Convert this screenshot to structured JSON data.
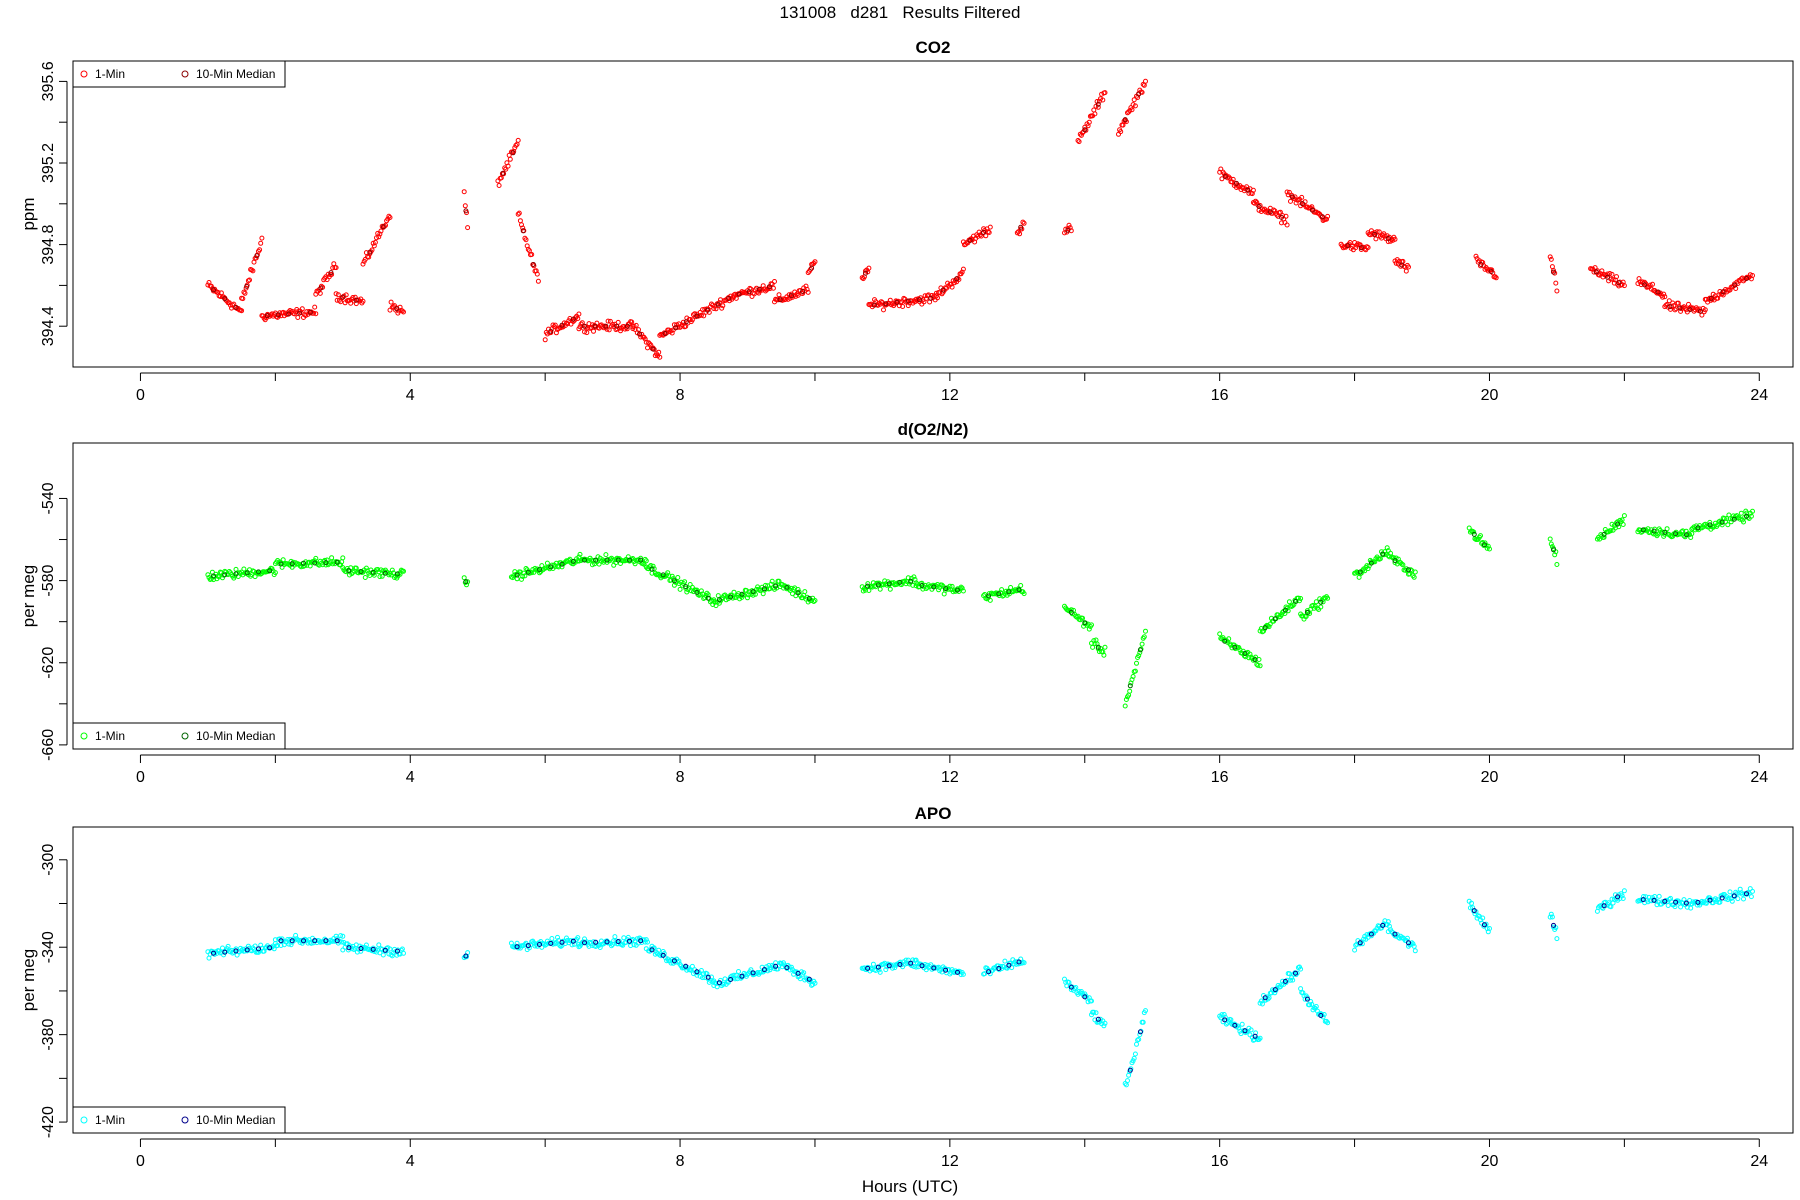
{
  "figure": {
    "title": "131008   d281   Results Filtered",
    "xlabel": "Hours (UTC)"
  },
  "chart_data": [
    {
      "type": "scatter",
      "title": "CO2",
      "xlabel": "",
      "ylabel": "ppm",
      "xlim": [
        -1,
        24.5
      ],
      "ylim": [
        394.2,
        395.7
      ],
      "xticks": [
        0,
        4,
        8,
        12,
        16,
        20,
        24
      ],
      "yticks": [
        394.4,
        394.8,
        395.2,
        395.6
      ],
      "ytick_labels": [
        "394.4",
        "394.8",
        "395.2",
        "395.6"
      ],
      "colors": {
        "minute": "#ff0000",
        "median": "#8b0000"
      },
      "legend": {
        "position": "top-left",
        "entries": [
          "1-Min",
          "10-Min Median"
        ]
      },
      "segments": [
        [
          1.0,
          1.5,
          394.6,
          394.47
        ],
        [
          1.5,
          1.8,
          394.52,
          394.82
        ],
        [
          1.8,
          2.6,
          394.45,
          394.47
        ],
        [
          2.6,
          2.9,
          394.55,
          394.7
        ],
        [
          2.9,
          3.3,
          394.55,
          394.52
        ],
        [
          3.3,
          3.7,
          394.7,
          394.95
        ],
        [
          3.7,
          3.9,
          394.5,
          394.47
        ],
        [
          4.8,
          4.85,
          395.05,
          394.88
        ],
        [
          5.3,
          5.6,
          395.1,
          395.3
        ],
        [
          5.6,
          5.9,
          394.95,
          394.62
        ],
        [
          6.0,
          6.5,
          394.36,
          394.45
        ],
        [
          6.5,
          7.3,
          394.4,
          394.4
        ],
        [
          7.3,
          7.7,
          394.4,
          394.25
        ],
        [
          7.7,
          8.8,
          394.35,
          394.55
        ],
        [
          8.8,
          9.4,
          394.55,
          394.6
        ],
        [
          9.4,
          9.9,
          394.52,
          394.58
        ],
        [
          9.9,
          10.0,
          394.65,
          394.72
        ],
        [
          10.7,
          10.8,
          394.62,
          394.7
        ],
        [
          10.8,
          11.8,
          394.5,
          394.54
        ],
        [
          11.8,
          12.2,
          394.55,
          394.66
        ],
        [
          12.2,
          12.6,
          394.8,
          394.88
        ],
        [
          13.0,
          13.1,
          394.85,
          394.92
        ],
        [
          13.7,
          13.8,
          394.86,
          394.88
        ],
        [
          13.9,
          14.3,
          395.3,
          395.55
        ],
        [
          14.5,
          14.9,
          395.35,
          395.6
        ],
        [
          16.0,
          16.5,
          395.15,
          395.05
        ],
        [
          16.5,
          17.0,
          395.0,
          394.92
        ],
        [
          17.0,
          17.6,
          395.05,
          394.92
        ],
        [
          17.8,
          18.2,
          394.8,
          394.78
        ],
        [
          18.2,
          18.6,
          394.86,
          394.82
        ],
        [
          18.6,
          18.8,
          394.72,
          394.68
        ],
        [
          19.8,
          20.1,
          394.72,
          394.65
        ],
        [
          20.9,
          21.0,
          394.75,
          394.58
        ],
        [
          21.5,
          22.0,
          394.68,
          394.6
        ],
        [
          22.2,
          22.6,
          394.62,
          394.55
        ],
        [
          22.6,
          23.2,
          394.5,
          394.47
        ],
        [
          23.2,
          23.9,
          394.52,
          394.65
        ]
      ]
    },
    {
      "type": "scatter",
      "title": "d(O2/N2)",
      "xlabel": "",
      "ylabel": "per meg",
      "xlim": [
        -1,
        24.5
      ],
      "ylim": [
        -662,
        -513
      ],
      "xticks": [
        0,
        4,
        8,
        12,
        16,
        20,
        24
      ],
      "yticks": [
        -660,
        -620,
        -580,
        -540
      ],
      "ytick_labels": [
        "-660",
        "-620",
        "-580",
        "-540"
      ],
      "colors": {
        "minute": "#00ff00",
        "median": "#006400"
      },
      "legend": {
        "position": "bottom-left",
        "entries": [
          "1-Min",
          "10-Min Median"
        ]
      },
      "segments": [
        [
          1.0,
          2.0,
          -578,
          -575
        ],
        [
          2.0,
          3.0,
          -572,
          -571
        ],
        [
          3.0,
          3.9,
          -575,
          -577
        ],
        [
          4.8,
          4.85,
          -581,
          -580
        ],
        [
          5.5,
          6.5,
          -578,
          -570
        ],
        [
          6.5,
          7.5,
          -570,
          -570
        ],
        [
          7.5,
          8.5,
          -573,
          -590
        ],
        [
          8.5,
          9.5,
          -590,
          -582
        ],
        [
          9.5,
          10.0,
          -582,
          -590
        ],
        [
          10.7,
          11.5,
          -583,
          -580
        ],
        [
          11.5,
          12.2,
          -582,
          -585
        ],
        [
          12.5,
          13.1,
          -588,
          -584
        ],
        [
          13.7,
          14.1,
          -593,
          -603
        ],
        [
          14.1,
          14.3,
          -610,
          -615
        ],
        [
          14.6,
          14.9,
          -640,
          -605
        ],
        [
          16.0,
          16.6,
          -608,
          -620
        ],
        [
          16.6,
          17.2,
          -605,
          -588
        ],
        [
          17.2,
          17.6,
          -598,
          -588
        ],
        [
          18.0,
          18.5,
          -578,
          -565
        ],
        [
          18.5,
          18.9,
          -568,
          -577
        ],
        [
          19.7,
          20.0,
          -555,
          -565
        ],
        [
          20.9,
          21.0,
          -560,
          -570
        ],
        [
          21.6,
          22.0,
          -560,
          -550
        ],
        [
          22.2,
          23.0,
          -555,
          -558
        ],
        [
          23.0,
          23.9,
          -555,
          -548
        ]
      ]
    },
    {
      "type": "scatter",
      "title": "APO",
      "xlabel": "Hours (UTC)",
      "ylabel": "per meg",
      "xlim": [
        -1,
        24.5
      ],
      "ylim": [
        -425,
        -285
      ],
      "xticks": [
        0,
        4,
        8,
        12,
        16,
        20,
        24
      ],
      "yticks": [
        -420,
        -380,
        -340,
        -300
      ],
      "ytick_labels": [
        "-420",
        "-380",
        "-340",
        "-300"
      ],
      "colors": {
        "minute": "#00ffff",
        "median": "#00008b"
      },
      "legend": {
        "position": "bottom-left",
        "entries": [
          "1-Min",
          "10-Min Median"
        ]
      },
      "segments": [
        [
          1.0,
          2.0,
          -343,
          -340
        ],
        [
          2.0,
          3.0,
          -337,
          -337
        ],
        [
          3.0,
          3.9,
          -340,
          -342
        ],
        [
          4.8,
          4.85,
          -345,
          -343
        ],
        [
          5.5,
          6.5,
          -340,
          -337
        ],
        [
          6.5,
          7.5,
          -338,
          -337
        ],
        [
          7.5,
          8.5,
          -340,
          -355
        ],
        [
          8.5,
          9.5,
          -357,
          -348
        ],
        [
          9.5,
          10.0,
          -348,
          -356
        ],
        [
          10.7,
          11.5,
          -350,
          -347
        ],
        [
          11.5,
          12.2,
          -348,
          -352
        ],
        [
          12.5,
          13.1,
          -352,
          -346
        ],
        [
          13.7,
          14.1,
          -356,
          -365
        ],
        [
          14.1,
          14.3,
          -370,
          -376
        ],
        [
          14.6,
          14.9,
          -405,
          -370
        ],
        [
          16.0,
          16.6,
          -372,
          -382
        ],
        [
          16.6,
          17.2,
          -365,
          -350
        ],
        [
          17.2,
          17.6,
          -360,
          -375
        ],
        [
          18.0,
          18.5,
          -340,
          -328
        ],
        [
          18.5,
          18.9,
          -332,
          -340
        ],
        [
          19.7,
          20.0,
          -320,
          -333
        ],
        [
          20.9,
          21.0,
          -325,
          -335
        ],
        [
          21.6,
          22.0,
          -323,
          -315
        ],
        [
          22.2,
          23.0,
          -318,
          -320
        ],
        [
          23.0,
          23.9,
          -320,
          -315
        ]
      ]
    }
  ]
}
